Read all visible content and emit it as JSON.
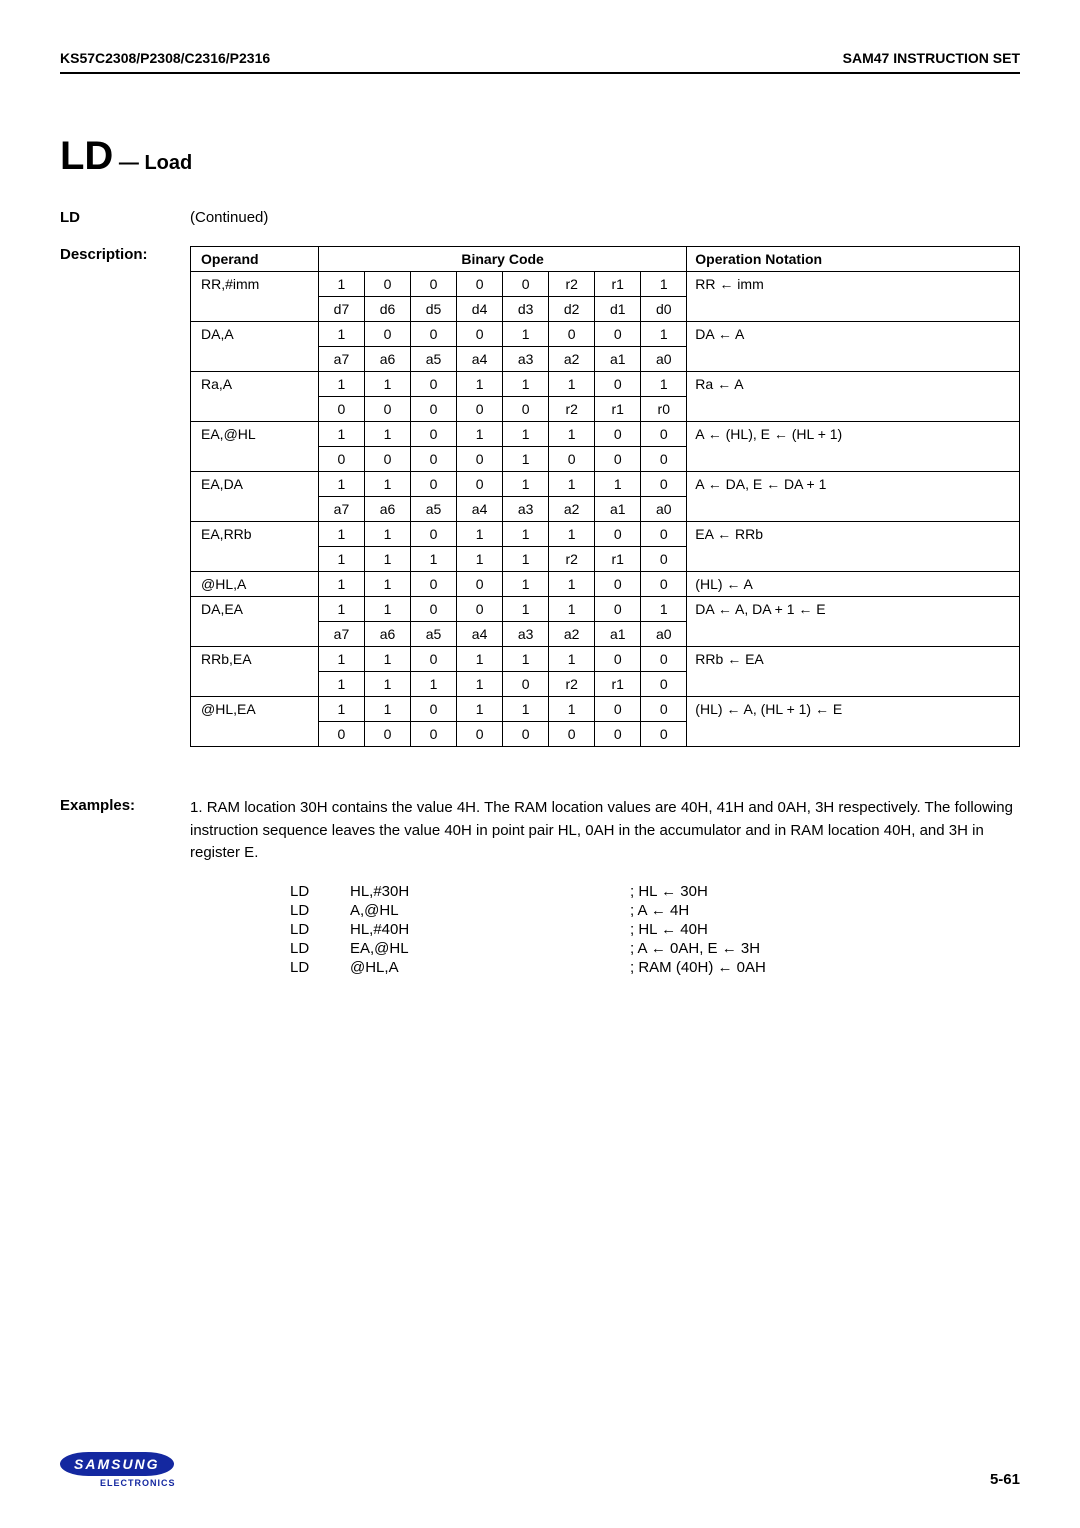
{
  "header": {
    "left": "KS57C2308/P2308/C2316/P2316",
    "right": "SAM47 INSTRUCTION SET"
  },
  "title": {
    "mnemonic": "LD",
    "dash": " — ",
    "name": "Load"
  },
  "continued": {
    "label": "LD",
    "text": "(Continued)"
  },
  "desc_label": "Description:",
  "table": {
    "head_operand": "Operand",
    "head_binary": "Binary Code",
    "head_notation": "Operation Notation",
    "rows": [
      {
        "op": "RR,#imm",
        "note": "RR ← imm",
        "b1": [
          "1",
          "0",
          "0",
          "0",
          "0",
          "r2",
          "r1",
          "1"
        ],
        "b2": [
          "d7",
          "d6",
          "d5",
          "d4",
          "d3",
          "d2",
          "d1",
          "d0"
        ]
      },
      {
        "op": "DA,A",
        "note": "DA ← A",
        "b1": [
          "1",
          "0",
          "0",
          "0",
          "1",
          "0",
          "0",
          "1"
        ],
        "b2": [
          "a7",
          "a6",
          "a5",
          "a4",
          "a3",
          "a2",
          "a1",
          "a0"
        ]
      },
      {
        "op": "Ra,A",
        "note": "Ra ← A",
        "b1": [
          "1",
          "1",
          "0",
          "1",
          "1",
          "1",
          "0",
          "1"
        ],
        "b2": [
          "0",
          "0",
          "0",
          "0",
          "0",
          "r2",
          "r1",
          "r0"
        ]
      },
      {
        "op": "EA,@HL",
        "note": "A ← (HL), E ← (HL + 1)",
        "b1": [
          "1",
          "1",
          "0",
          "1",
          "1",
          "1",
          "0",
          "0"
        ],
        "b2": [
          "0",
          "0",
          "0",
          "0",
          "1",
          "0",
          "0",
          "0"
        ]
      },
      {
        "op": "EA,DA",
        "note": "A ← DA, E ← DA + 1",
        "b1": [
          "1",
          "1",
          "0",
          "0",
          "1",
          "1",
          "1",
          "0"
        ],
        "b2": [
          "a7",
          "a6",
          "a5",
          "a4",
          "a3",
          "a2",
          "a1",
          "a0"
        ]
      },
      {
        "op": "EA,RRb",
        "note": "EA ← RRb",
        "b1": [
          "1",
          "1",
          "0",
          "1",
          "1",
          "1",
          "0",
          "0"
        ],
        "b2": [
          "1",
          "1",
          "1",
          "1",
          "1",
          "r2",
          "r1",
          "0"
        ]
      },
      {
        "op": "@HL,A",
        "note": "(HL) ← A",
        "b1": [
          "1",
          "1",
          "0",
          "0",
          "1",
          "1",
          "0",
          "0"
        ],
        "single": true
      },
      {
        "op": "DA,EA",
        "note": "DA ← A, DA + 1 ← E",
        "b1": [
          "1",
          "1",
          "0",
          "0",
          "1",
          "1",
          "0",
          "1"
        ],
        "b2": [
          "a7",
          "a6",
          "a5",
          "a4",
          "a3",
          "a2",
          "a1",
          "a0"
        ]
      },
      {
        "op": "RRb,EA",
        "note": "RRb ← EA",
        "b1": [
          "1",
          "1",
          "0",
          "1",
          "1",
          "1",
          "0",
          "0"
        ],
        "b2": [
          "1",
          "1",
          "1",
          "1",
          "0",
          "r2",
          "r1",
          "0"
        ]
      },
      {
        "op": "@HL,EA",
        "note": "(HL) ← A, (HL + 1) ← E",
        "b1": [
          "1",
          "1",
          "0",
          "1",
          "1",
          "1",
          "0",
          "0"
        ],
        "b2": [
          "0",
          "0",
          "0",
          "0",
          "0",
          "0",
          "0",
          "0"
        ]
      }
    ]
  },
  "examples": {
    "label": "Examples:",
    "intro_num": "1.",
    "intro": "RAM location 30H contains the value 4H. The RAM location values are 40H, 41H and 0AH, 3H respectively. The following instruction sequence leaves the value 40H in point pair HL, 0AH in the accumulator and in RAM location 40H, and 3H in register E.",
    "code": [
      {
        "m": "LD",
        "op": "HL,#30H",
        "c": ";   HL  ←  30H"
      },
      {
        "m": "LD",
        "op": "A,@HL",
        "c": ";   A  ←  4H"
      },
      {
        "m": "LD",
        "op": "HL,#40H",
        "c": ";   HL  ←  40H"
      },
      {
        "m": "LD",
        "op": "EA,@HL",
        "c": ";   A  ←  0AH, E  ←  3H"
      },
      {
        "m": "LD",
        "op": "@HL,A",
        "c": ";   RAM (40H)  ←  0AH"
      }
    ]
  },
  "footer": {
    "logo": "SAMSUNG",
    "sub": "ELECTRONICS",
    "page": "5-61"
  }
}
